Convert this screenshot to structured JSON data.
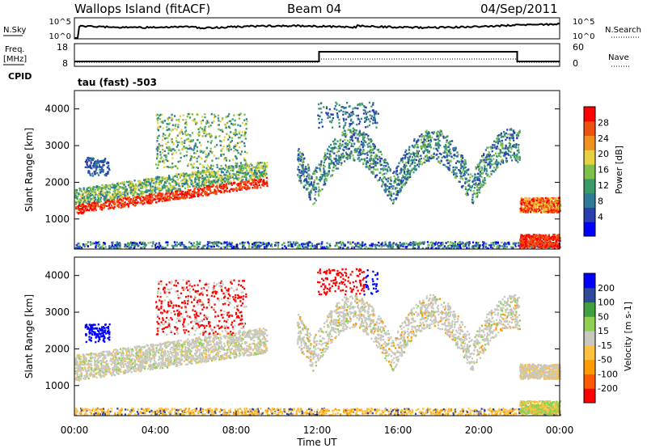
{
  "header": {
    "title": "Wallops Island (fitACF)",
    "beam": "Beam 04",
    "date": "04/Sep/2011"
  },
  "noise_panel": {
    "left_label": "N.Sky",
    "right_label": "N.Search",
    "left_ticks": [
      "10^5",
      "10^0"
    ],
    "right_ticks": [
      "10^5",
      "10^0"
    ]
  },
  "freq_panel": {
    "left_label_1": "Freq.",
    "left_label_2": "[MHz]",
    "right_label": "Nave",
    "left_ticks": [
      "18",
      "8"
    ],
    "right_ticks": [
      "60",
      "0"
    ]
  },
  "cpid": {
    "label": "CPID",
    "value": "tau (fast) -503"
  },
  "colors": {
    "power": [
      "#0000ff",
      "#2a3fb0",
      "#2f7a96",
      "#3b9a6a",
      "#7fc04a",
      "#e8d040",
      "#f09020",
      "#f05010",
      "#ff0000"
    ],
    "velocity": [
      "#ff0000",
      "#ff5a00",
      "#ff9a00",
      "#ffc040",
      "#c8c8c0",
      "#90d050",
      "#40a040",
      "#304a9a",
      "#0000ff"
    ]
  },
  "chart_data": [
    {
      "type": "heatmap",
      "name": "Power",
      "ylabel": "Slant Range [km]",
      "yticks": [
        "4000",
        "3000",
        "2000",
        "1000"
      ],
      "ylim": [
        180,
        4500
      ],
      "colorbar_label": "Power [dB]",
      "colorbar_ticks": [
        "28",
        "24",
        "20",
        "16",
        "12",
        "8",
        "4"
      ]
    },
    {
      "type": "heatmap",
      "name": "Velocity",
      "ylabel": "Slant Range [km]",
      "yticks": [
        "4000",
        "3000",
        "2000",
        "1000"
      ],
      "ylim": [
        180,
        4500
      ],
      "colorbar_label": "Velocity [m s-1]",
      "colorbar_ticks": [
        "200",
        "100",
        "50",
        "15",
        "-15",
        "-50",
        "-100",
        "-200"
      ]
    }
  ],
  "x_axis": {
    "label": "Time UT",
    "ticks": [
      "00:00",
      "04:00",
      "08:00",
      "12:00",
      "16:00",
      "20:00",
      "00:00"
    ],
    "range_hours": [
      0,
      24
    ]
  }
}
